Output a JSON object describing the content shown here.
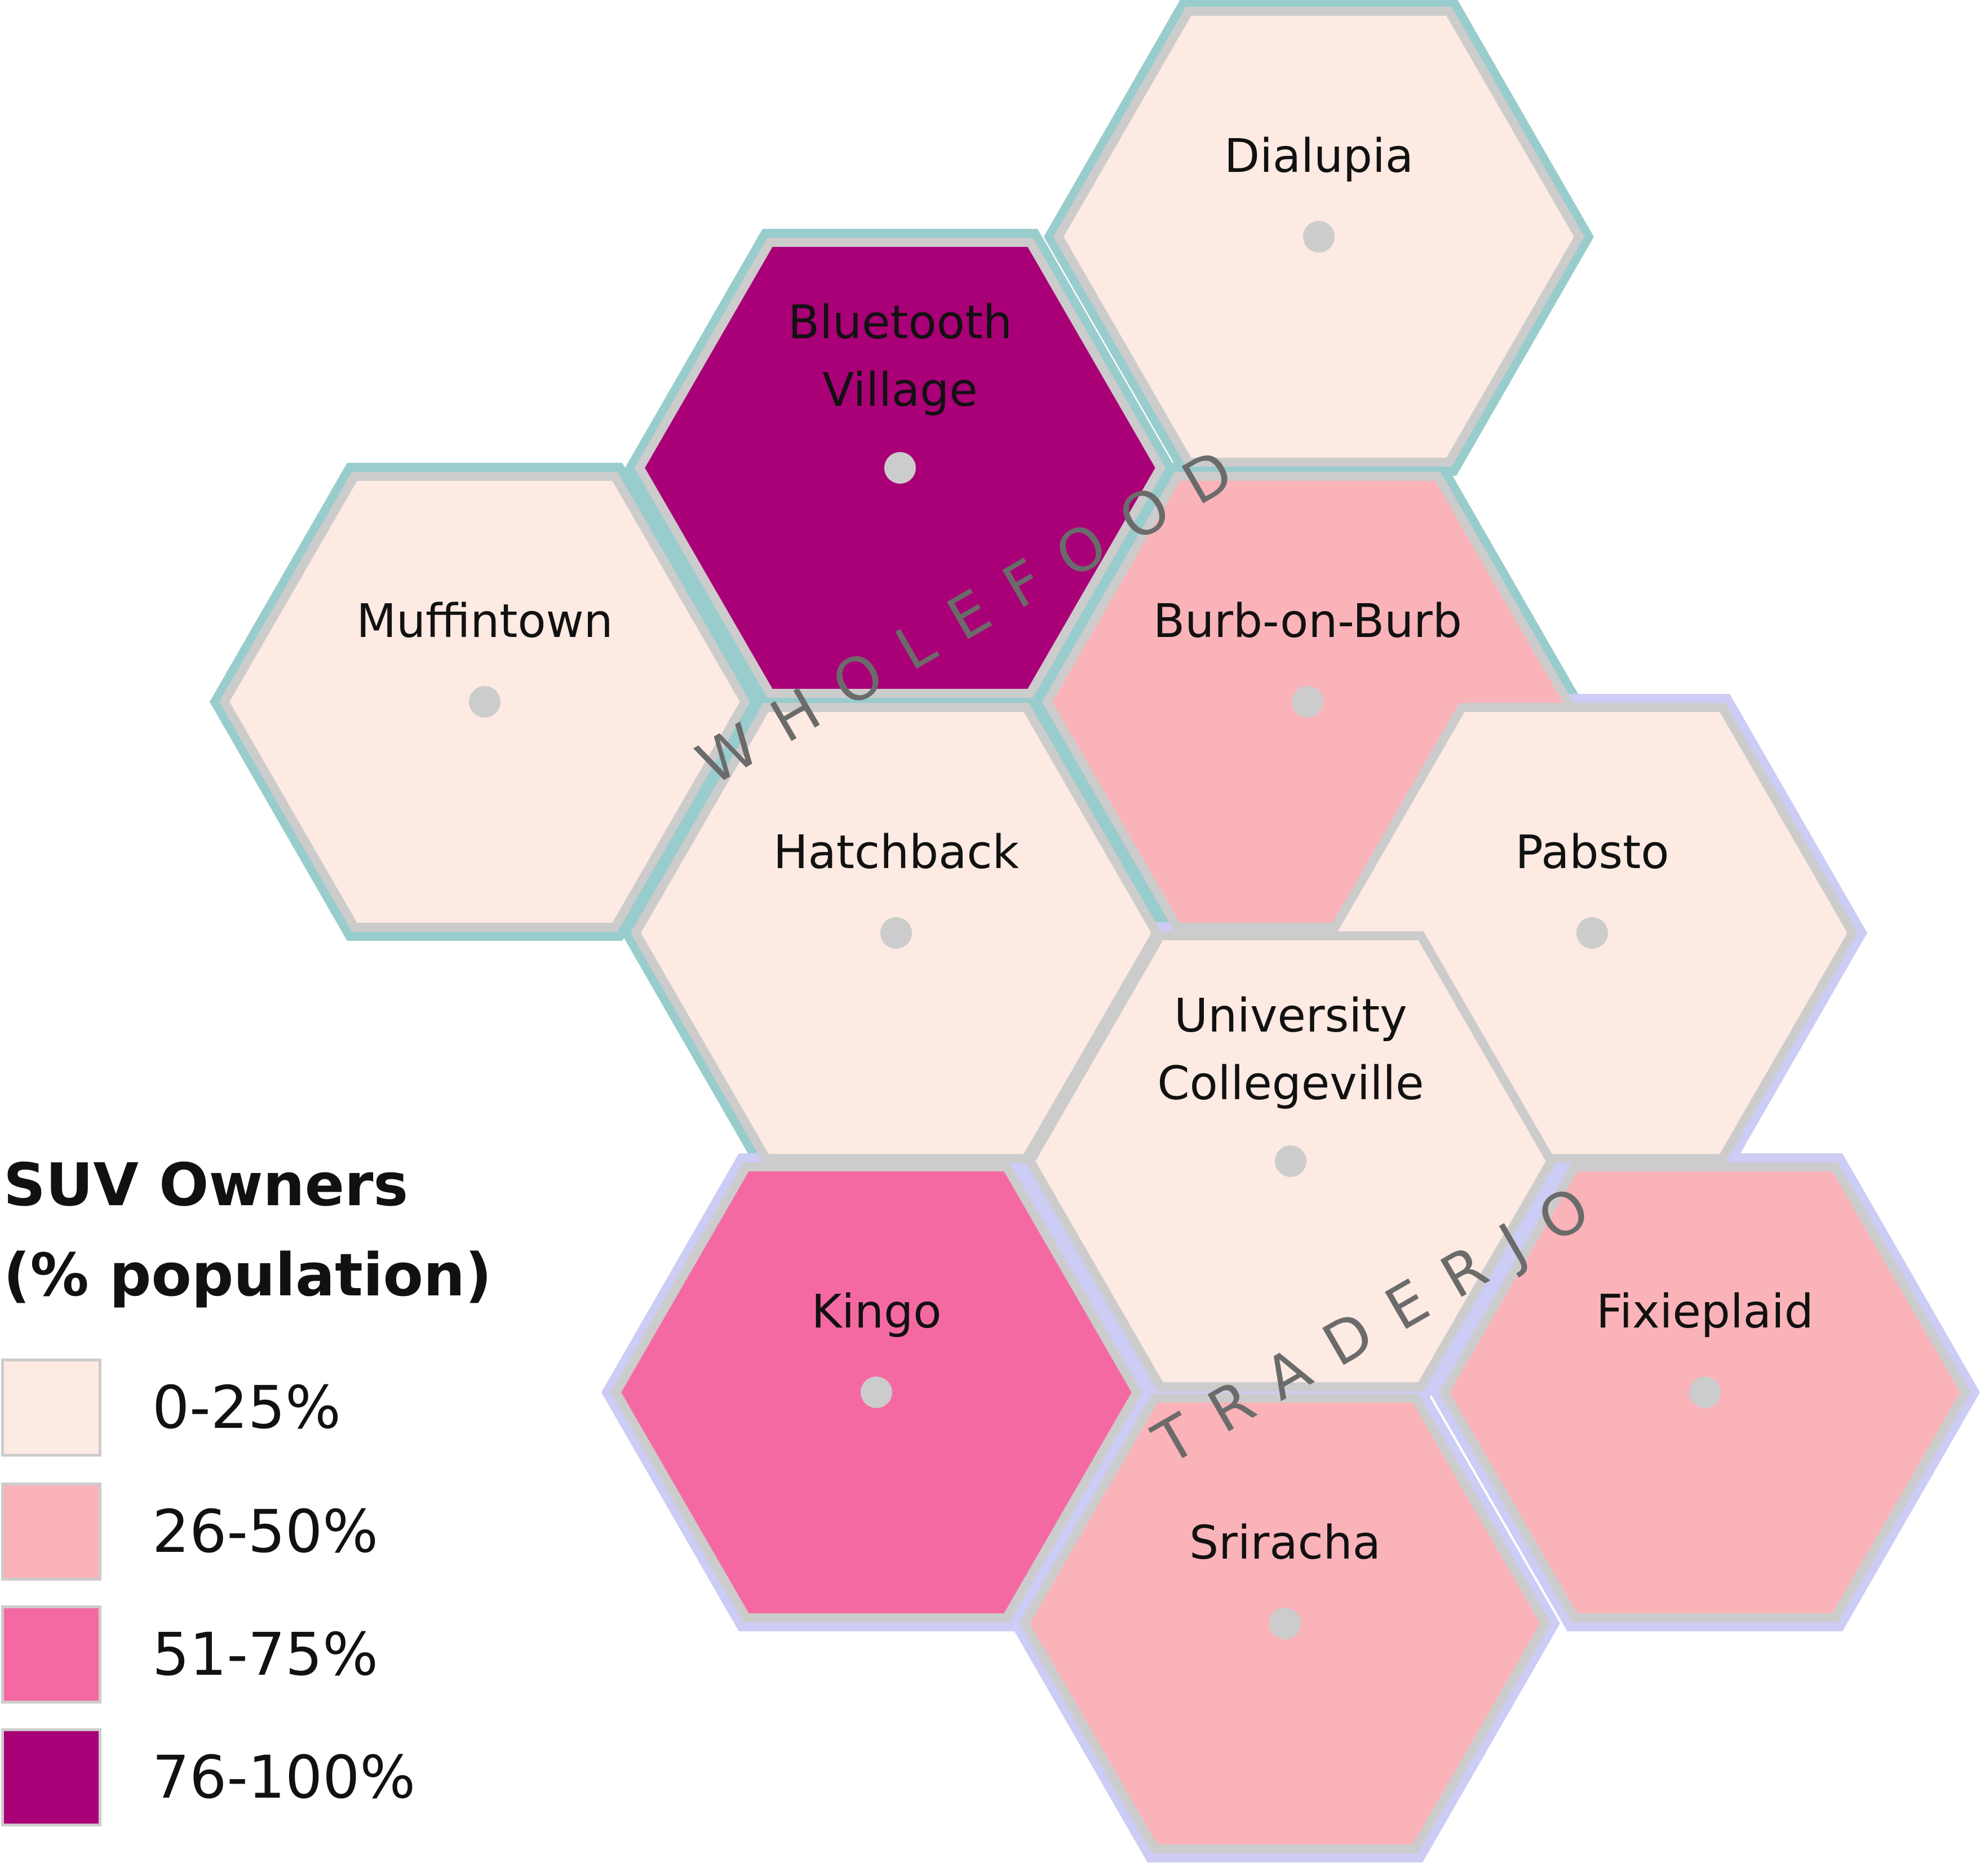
{
  "legend": {
    "title_line1": "SUV Owners",
    "title_line2": "(% population)",
    "items": [
      {
        "label": "0-25%",
        "color": "#fdeae2"
      },
      {
        "label": "26-50%",
        "color": "#f9b3b9"
      },
      {
        "label": "51-75%",
        "color": "#f569a2"
      },
      {
        "label": "76-100%",
        "color": "#aa0077"
      }
    ]
  },
  "districts": {
    "wholefood": {
      "label": "WHOLEFOOD",
      "border_color": "#99cccc"
    },
    "traderjo": {
      "label": "TRADERJO",
      "border_color": "#ccccf5"
    }
  },
  "neighborhoods": [
    {
      "name": "Dialupia",
      "lines": [
        "Dialupia"
      ],
      "bin": 0,
      "district": "wholefood"
    },
    {
      "name": "Bluetooth Village",
      "lines": [
        "Bluetooth",
        "Village"
      ],
      "bin": 3,
      "district": "wholefood"
    },
    {
      "name": "Muffintown",
      "lines": [
        "Muffintown"
      ],
      "bin": 0,
      "district": "wholefood"
    },
    {
      "name": "Burb-on-Burb",
      "lines": [
        "Burb-on-Burb"
      ],
      "bin": 1,
      "district": "wholefood"
    },
    {
      "name": "Hatchback",
      "lines": [
        "Hatchback"
      ],
      "bin": 0,
      "district": "wholefood"
    },
    {
      "name": "Pabsto",
      "lines": [
        "Pabsto"
      ],
      "bin": 0,
      "district": "traderjo"
    },
    {
      "name": "University Collegeville",
      "lines": [
        "University",
        "Collegeville"
      ],
      "bin": 0,
      "district": "traderjo"
    },
    {
      "name": "Kingo",
      "lines": [
        "Kingo"
      ],
      "bin": 2,
      "district": "traderjo"
    },
    {
      "name": "Fixieplaid",
      "lines": [
        "Fixieplaid"
      ],
      "bin": 1,
      "district": "traderjo"
    },
    {
      "name": "Sriracha",
      "lines": [
        "Sriracha"
      ],
      "bin": 1,
      "district": "traderjo"
    }
  ],
  "styles": {
    "hex_border_color": "#cccccc",
    "centroid_color": "#cccccc"
  }
}
